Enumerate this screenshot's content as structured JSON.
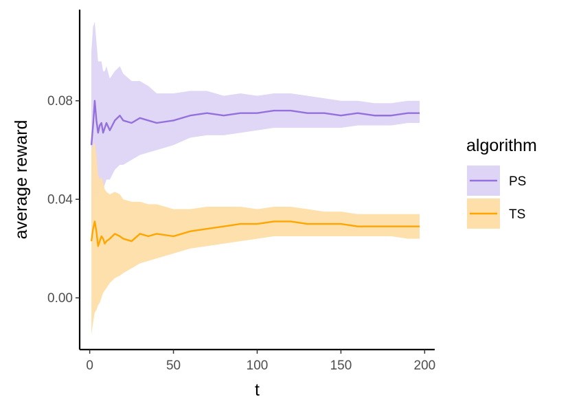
{
  "chart_data": {
    "type": "line",
    "title": "",
    "xlabel": "t",
    "ylabel": "average reward",
    "xlim": [
      -6,
      206
    ],
    "ylim": [
      -0.021,
      0.117
    ],
    "xticks": [
      0,
      50,
      100,
      150,
      200
    ],
    "yticks": [
      0.0,
      0.04,
      0.08
    ],
    "xtick_labels": [
      "0",
      "50",
      "100",
      "150",
      "200"
    ],
    "ytick_labels": [
      "0.00",
      "0.04",
      "0.08"
    ],
    "grid": false,
    "legend": {
      "title": "algorithm",
      "position": "right"
    },
    "series": [
      {
        "name": "PS",
        "color": "#9370DB",
        "fill": "#DED4F6",
        "x": [
          1,
          2,
          3,
          4,
          5,
          6,
          7,
          8,
          9,
          10,
          12,
          15,
          18,
          20,
          25,
          30,
          35,
          40,
          50,
          60,
          70,
          80,
          90,
          100,
          110,
          120,
          130,
          140,
          150,
          160,
          170,
          180,
          190,
          197
        ],
        "mean": [
          0.062,
          0.07,
          0.08,
          0.072,
          0.067,
          0.07,
          0.071,
          0.067,
          0.069,
          0.071,
          0.068,
          0.072,
          0.074,
          0.072,
          0.071,
          0.073,
          0.072,
          0.071,
          0.072,
          0.074,
          0.075,
          0.074,
          0.075,
          0.075,
          0.076,
          0.076,
          0.075,
          0.075,
          0.074,
          0.075,
          0.074,
          0.074,
          0.075,
          0.075
        ],
        "lower": [
          0.025,
          0.03,
          0.042,
          0.04,
          0.04,
          0.045,
          0.046,
          0.044,
          0.046,
          0.048,
          0.048,
          0.052,
          0.054,
          0.054,
          0.056,
          0.058,
          0.059,
          0.06,
          0.062,
          0.065,
          0.066,
          0.066,
          0.067,
          0.068,
          0.069,
          0.069,
          0.069,
          0.069,
          0.069,
          0.07,
          0.07,
          0.07,
          0.071,
          0.071
        ],
        "upper": [
          0.1,
          0.11,
          0.112,
          0.104,
          0.096,
          0.096,
          0.096,
          0.092,
          0.092,
          0.094,
          0.089,
          0.092,
          0.094,
          0.091,
          0.088,
          0.088,
          0.086,
          0.083,
          0.083,
          0.084,
          0.084,
          0.082,
          0.083,
          0.082,
          0.083,
          0.083,
          0.082,
          0.081,
          0.08,
          0.08,
          0.079,
          0.079,
          0.08,
          0.08
        ]
      },
      {
        "name": "TS",
        "color": "#FFA500",
        "fill": "#FEDEA9",
        "x": [
          1,
          2,
          3,
          4,
          5,
          6,
          7,
          8,
          9,
          10,
          12,
          15,
          18,
          20,
          25,
          30,
          35,
          40,
          50,
          60,
          70,
          80,
          90,
          100,
          110,
          120,
          130,
          140,
          150,
          160,
          170,
          180,
          190,
          197
        ],
        "mean": [
          0.023,
          0.028,
          0.031,
          0.027,
          0.021,
          0.023,
          0.025,
          0.024,
          0.022,
          0.023,
          0.024,
          0.026,
          0.025,
          0.024,
          0.023,
          0.026,
          0.025,
          0.026,
          0.025,
          0.027,
          0.028,
          0.029,
          0.03,
          0.03,
          0.031,
          0.031,
          0.03,
          0.03,
          0.03,
          0.029,
          0.029,
          0.029,
          0.029,
          0.029
        ],
        "lower": [
          -0.015,
          -0.01,
          -0.006,
          -0.005,
          -0.003,
          -0.002,
          0.0,
          0.002,
          0.003,
          0.004,
          0.006,
          0.008,
          0.009,
          0.01,
          0.012,
          0.014,
          0.015,
          0.016,
          0.018,
          0.02,
          0.021,
          0.022,
          0.023,
          0.024,
          0.025,
          0.025,
          0.025,
          0.025,
          0.025,
          0.025,
          0.025,
          0.025,
          0.024,
          0.024
        ],
        "upper": [
          0.06,
          0.062,
          0.063,
          0.058,
          0.05,
          0.048,
          0.049,
          0.047,
          0.044,
          0.043,
          0.042,
          0.043,
          0.042,
          0.04,
          0.039,
          0.039,
          0.038,
          0.038,
          0.036,
          0.036,
          0.037,
          0.037,
          0.037,
          0.036,
          0.037,
          0.037,
          0.036,
          0.035,
          0.035,
          0.034,
          0.034,
          0.034,
          0.034,
          0.034
        ]
      }
    ]
  }
}
